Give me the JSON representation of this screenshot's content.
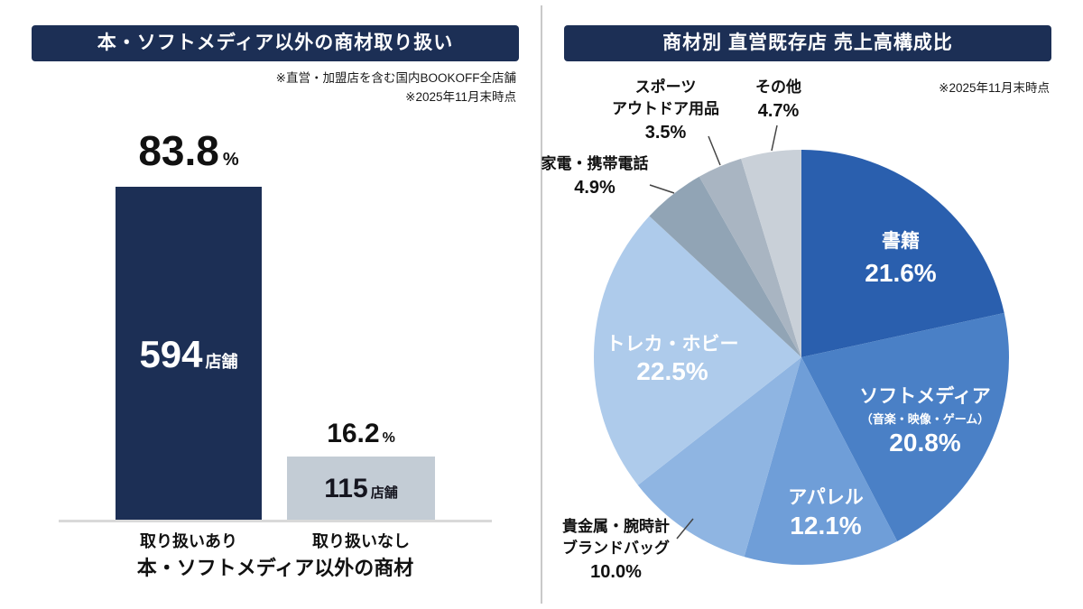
{
  "colors": {
    "banner": "#1c2f55",
    "background": "#ffffff",
    "divider": "#c9c9c9",
    "baseline": "#d9d9d9"
  },
  "chart_data": [
    {
      "type": "bar",
      "title": "本・ソフトメディア以外の商材取り扱い",
      "notes": [
        "※直営・加盟店を含む国内BOOKOFF全店舗",
        "※2025年11月末時点"
      ],
      "categories": [
        "取り扱いあり",
        "取り扱いなし"
      ],
      "values": [
        83.8,
        16.2
      ],
      "value_displays": [
        "83.8",
        "16.2"
      ],
      "value_unit": "%",
      "counts": [
        "594",
        "115"
      ],
      "count_unit": "店舗",
      "xlabel": "本・ソフトメディア以外の商材",
      "ylim": [
        0,
        100
      ],
      "colors": [
        "#1c2f55",
        "#c3ccd5"
      ]
    },
    {
      "type": "pie",
      "title": "商材別 直営既存店 売上高構成比",
      "note": "※2025年11月末時点",
      "legend_position": "none",
      "slices": [
        {
          "label": "書籍",
          "value": 21.6,
          "pct_display": "21.6%",
          "color": "#2a5fae",
          "label_placement": "inside"
        },
        {
          "label": "ソフトメディア",
          "sublabel": "（音楽・映像・ゲーム）",
          "value": 20.8,
          "pct_display": "20.8%",
          "color": "#4a80c6",
          "label_placement": "inside"
        },
        {
          "label": "アパレル",
          "value": 12.1,
          "pct_display": "12.1%",
          "color": "#6f9ed8",
          "label_placement": "inside"
        },
        {
          "label": "貴金属・腕時計ブランドバッグ",
          "label_lines": [
            "貴金属・腕時計",
            "ブランドバッグ"
          ],
          "value": 10.0,
          "pct_display": "10.0%",
          "color": "#8fb5e2",
          "label_placement": "outside"
        },
        {
          "label": "トレカ・ホビー",
          "value": 22.5,
          "pct_display": "22.5%",
          "color": "#aecbeb",
          "label_placement": "inside"
        },
        {
          "label": "家電・携帯電話",
          "value": 4.9,
          "pct_display": "4.9%",
          "color": "#91a4b5",
          "label_placement": "outside"
        },
        {
          "label": "スポーツアウトドア用品",
          "label_lines": [
            "スポーツ",
            "アウトドア用品"
          ],
          "value": 3.5,
          "pct_display": "3.5%",
          "color": "#a9b5c2",
          "label_placement": "outside"
        },
        {
          "label": "その他",
          "value": 4.7,
          "pct_display": "4.7%",
          "color": "#c9d0d8",
          "label_placement": "outside"
        }
      ]
    }
  ]
}
